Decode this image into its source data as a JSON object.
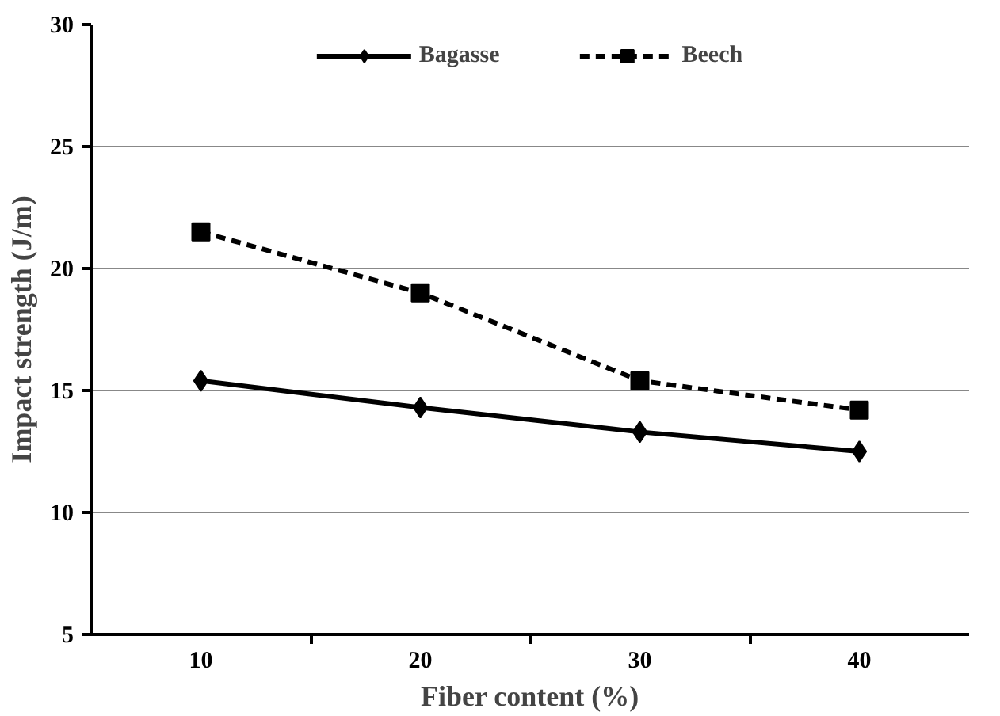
{
  "chart_data": {
    "type": "line",
    "xlabel": "Fiber content (%)",
    "ylabel": "Impact strength (J/m)",
    "categories": [
      "10",
      "20",
      "30",
      "40"
    ],
    "series": [
      {
        "name": "Bagasse",
        "color": "#000000",
        "values": [
          15.4,
          14.3,
          13.3,
          12.5
        ],
        "marker": "diamond",
        "line_style": "solid"
      },
      {
        "name": "Beech",
        "color": "#000000",
        "values": [
          21.5,
          19.0,
          15.4,
          14.2
        ],
        "marker": "square",
        "line_style": "dashed"
      }
    ],
    "ylim": [
      5,
      30
    ],
    "yticks": [
      5,
      10,
      15,
      20,
      25,
      30
    ],
    "grid": "y",
    "legend": "top"
  }
}
